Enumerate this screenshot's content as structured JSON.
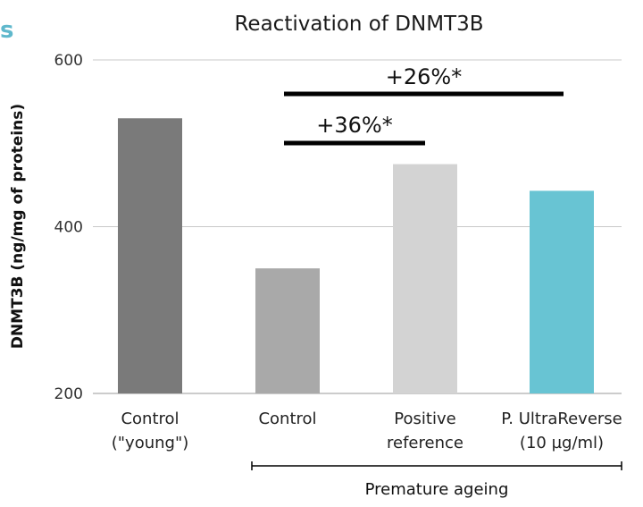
{
  "corner_fragment": "s",
  "chart_data": {
    "type": "bar",
    "title": "Reactivation of DNMT3B",
    "ylabel": "DNMT3B (ng/mg of proteins)",
    "ylim": [
      200,
      600
    ],
    "yticks": [
      200,
      400,
      600
    ],
    "grid": true,
    "categories": [
      [
        "Control",
        "(\"young\")"
      ],
      [
        "Control"
      ],
      [
        "Positive",
        "reference"
      ],
      [
        "P. UltraReverse",
        "(10 µg/ml)"
      ]
    ],
    "values": [
      530,
      350,
      475,
      443
    ],
    "colors": [
      "#7a7a7a",
      "#a9a9a9",
      "#d3d3d3",
      "#68c4d3"
    ],
    "comparisons": [
      {
        "label": "+26%*",
        "from": 1,
        "to": 3
      },
      {
        "label": "+36%*",
        "from": 1,
        "to": 2
      }
    ],
    "group": {
      "label": "Premature ageing",
      "from": 1,
      "to": 3
    }
  }
}
